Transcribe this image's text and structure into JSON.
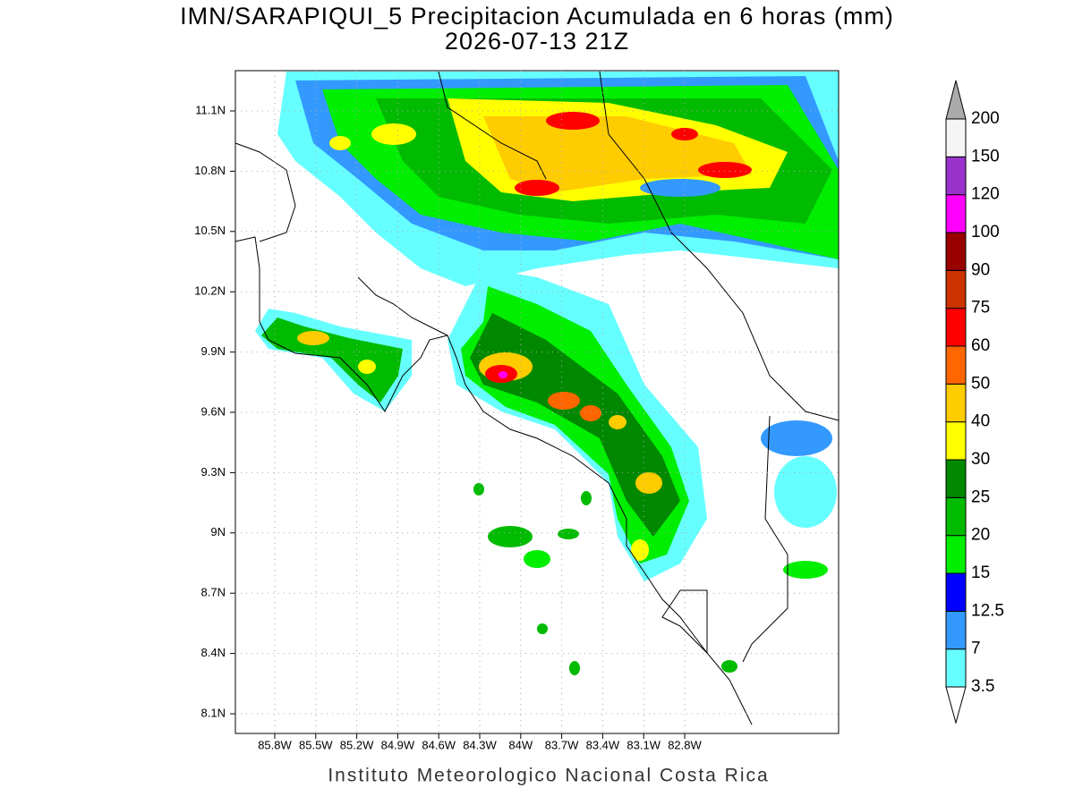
{
  "map": {
    "title": "IMN/SARAPIQUI_5 Precipitacion Acumulada en 6 horas (mm)",
    "subtitle": "2026-07-13 21Z",
    "lat_labels": [
      "11.1N",
      "10.8N",
      "10.5N",
      "10.2N",
      "9.9N",
      "9.6N",
      "9.3N",
      "9N",
      "8.7N",
      "8.4N",
      "8.1N"
    ],
    "lon_labels": [
      "85.8W",
      "85.5W",
      "85.2W",
      "84.9W",
      "84.6W",
      "84.3W",
      "84W",
      "83.7W",
      "83.4W",
      "83.1W",
      "82.8W"
    ],
    "legend": {
      "levels": [
        3.5,
        7,
        12.5,
        15,
        20,
        25,
        30,
        40,
        50,
        60,
        75,
        90,
        100,
        120,
        150,
        200
      ],
      "colors": [
        "#66ffff",
        "#3399ff",
        "#0000ff",
        "#00ee00",
        "#00bb00",
        "#008800",
        "#ffff00",
        "#ffcc00",
        "#ff6600",
        "#ff0000",
        "#cc3300",
        "#990000",
        "#ff00ff",
        "#9933cc",
        "#f5f5f5"
      ]
    },
    "footer": "Instituto Meteorologico Nacional Costa Rica"
  }
}
